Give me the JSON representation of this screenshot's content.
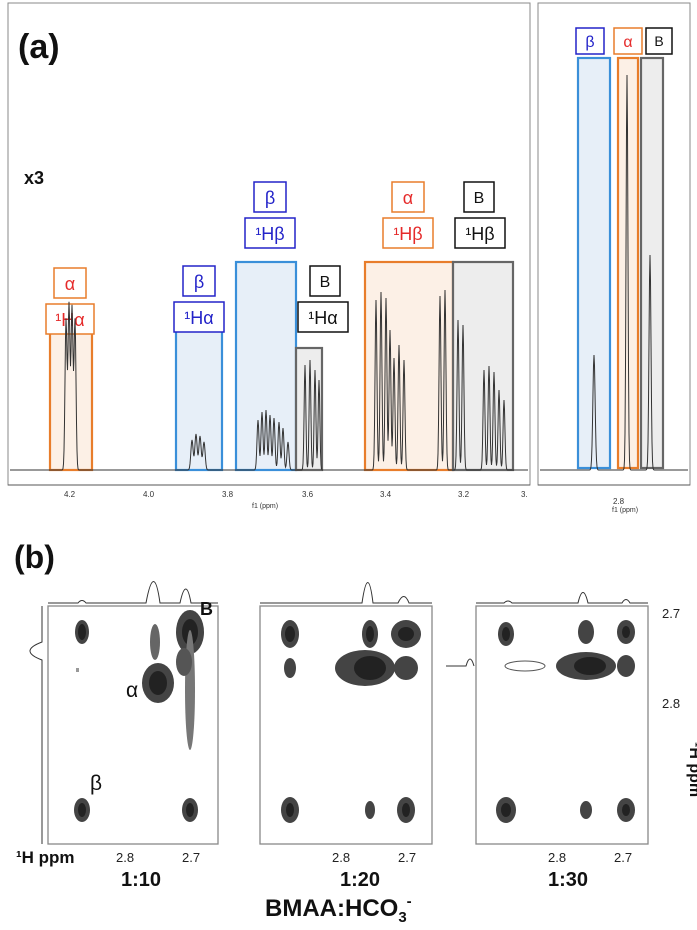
{
  "panel_a": {
    "label": "(a)",
    "scale_note": "x3",
    "left_axis": {
      "ticks": [
        "4.2",
        "4.0",
        "3.8",
        "3.6",
        "3.4",
        "3.2",
        "3."
      ],
      "xlabel": "f1 (ppm)"
    },
    "right_axis": {
      "ticks": [
        "2.8"
      ],
      "xlabel": "f1 (ppm)"
    },
    "groups": [
      {
        "id": "alpha-h-alpha",
        "top_label": "α",
        "assign_label": "¹Hα",
        "color": "#e87d2b",
        "label_color": "#e52a2a"
      },
      {
        "id": "beta-h-alpha",
        "top_label": "β",
        "assign_label": "¹Hα",
        "color": "#3a8fd9",
        "label_color": "#2323c9"
      },
      {
        "id": "beta-h-beta",
        "top_label": "β",
        "assign_label": "¹Hβ",
        "color": "#3a8fd9",
        "label_color": "#2323c9"
      },
      {
        "id": "b-h-alpha",
        "top_label": "B",
        "assign_label": "¹Hα",
        "color": "#666666",
        "label_color": "#111111"
      },
      {
        "id": "alpha-h-beta",
        "top_label": "α",
        "assign_label": "¹Hβ",
        "color": "#e87d2b",
        "label_color": "#e52a2a"
      },
      {
        "id": "b-h-beta",
        "top_label": "B",
        "assign_label": "¹Hβ",
        "color": "#666666",
        "label_color": "#111111"
      }
    ],
    "right_groups": [
      {
        "id": "beta",
        "label": "β",
        "color": "#3a8fd9",
        "label_color": "#2323c9"
      },
      {
        "id": "alpha",
        "label": "α",
        "color": "#e87d2b",
        "label_color": "#e52a2a"
      },
      {
        "id": "b",
        "label": "B",
        "color": "#666666",
        "label_color": "#111111"
      }
    ]
  },
  "panel_b": {
    "label": "(b)",
    "spectra": [
      {
        "ratio": "1:10"
      },
      {
        "ratio": "1:20"
      },
      {
        "ratio": "1:30"
      }
    ],
    "x_ticks": [
      "2.8",
      "2.7"
    ],
    "y_ticks": [
      "2.7",
      "2.8"
    ],
    "x_axis_label": "¹H ppm",
    "y_axis_label": "¹H ppm",
    "peak_labels": {
      "b": "B",
      "alpha": "α",
      "beta": "β"
    },
    "series_title": "BMAA:HCO",
    "series_title_sub": "3",
    "series_title_sup": "-"
  }
}
